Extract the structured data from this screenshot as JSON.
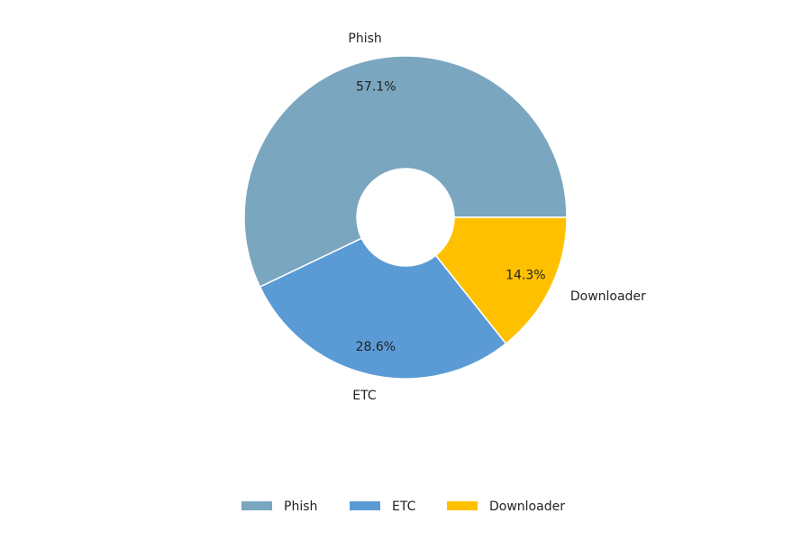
{
  "chart_data": {
    "type": "donut",
    "categories": [
      "Phish",
      "ETC",
      "Downloader"
    ],
    "values": [
      57.1,
      28.6,
      14.3
    ],
    "value_labels": [
      "57.1%",
      "28.6%",
      "14.3%"
    ],
    "colors": [
      "#7aa6c0",
      "#5b9bd5",
      "#ffc000"
    ],
    "legend": "bottom"
  }
}
